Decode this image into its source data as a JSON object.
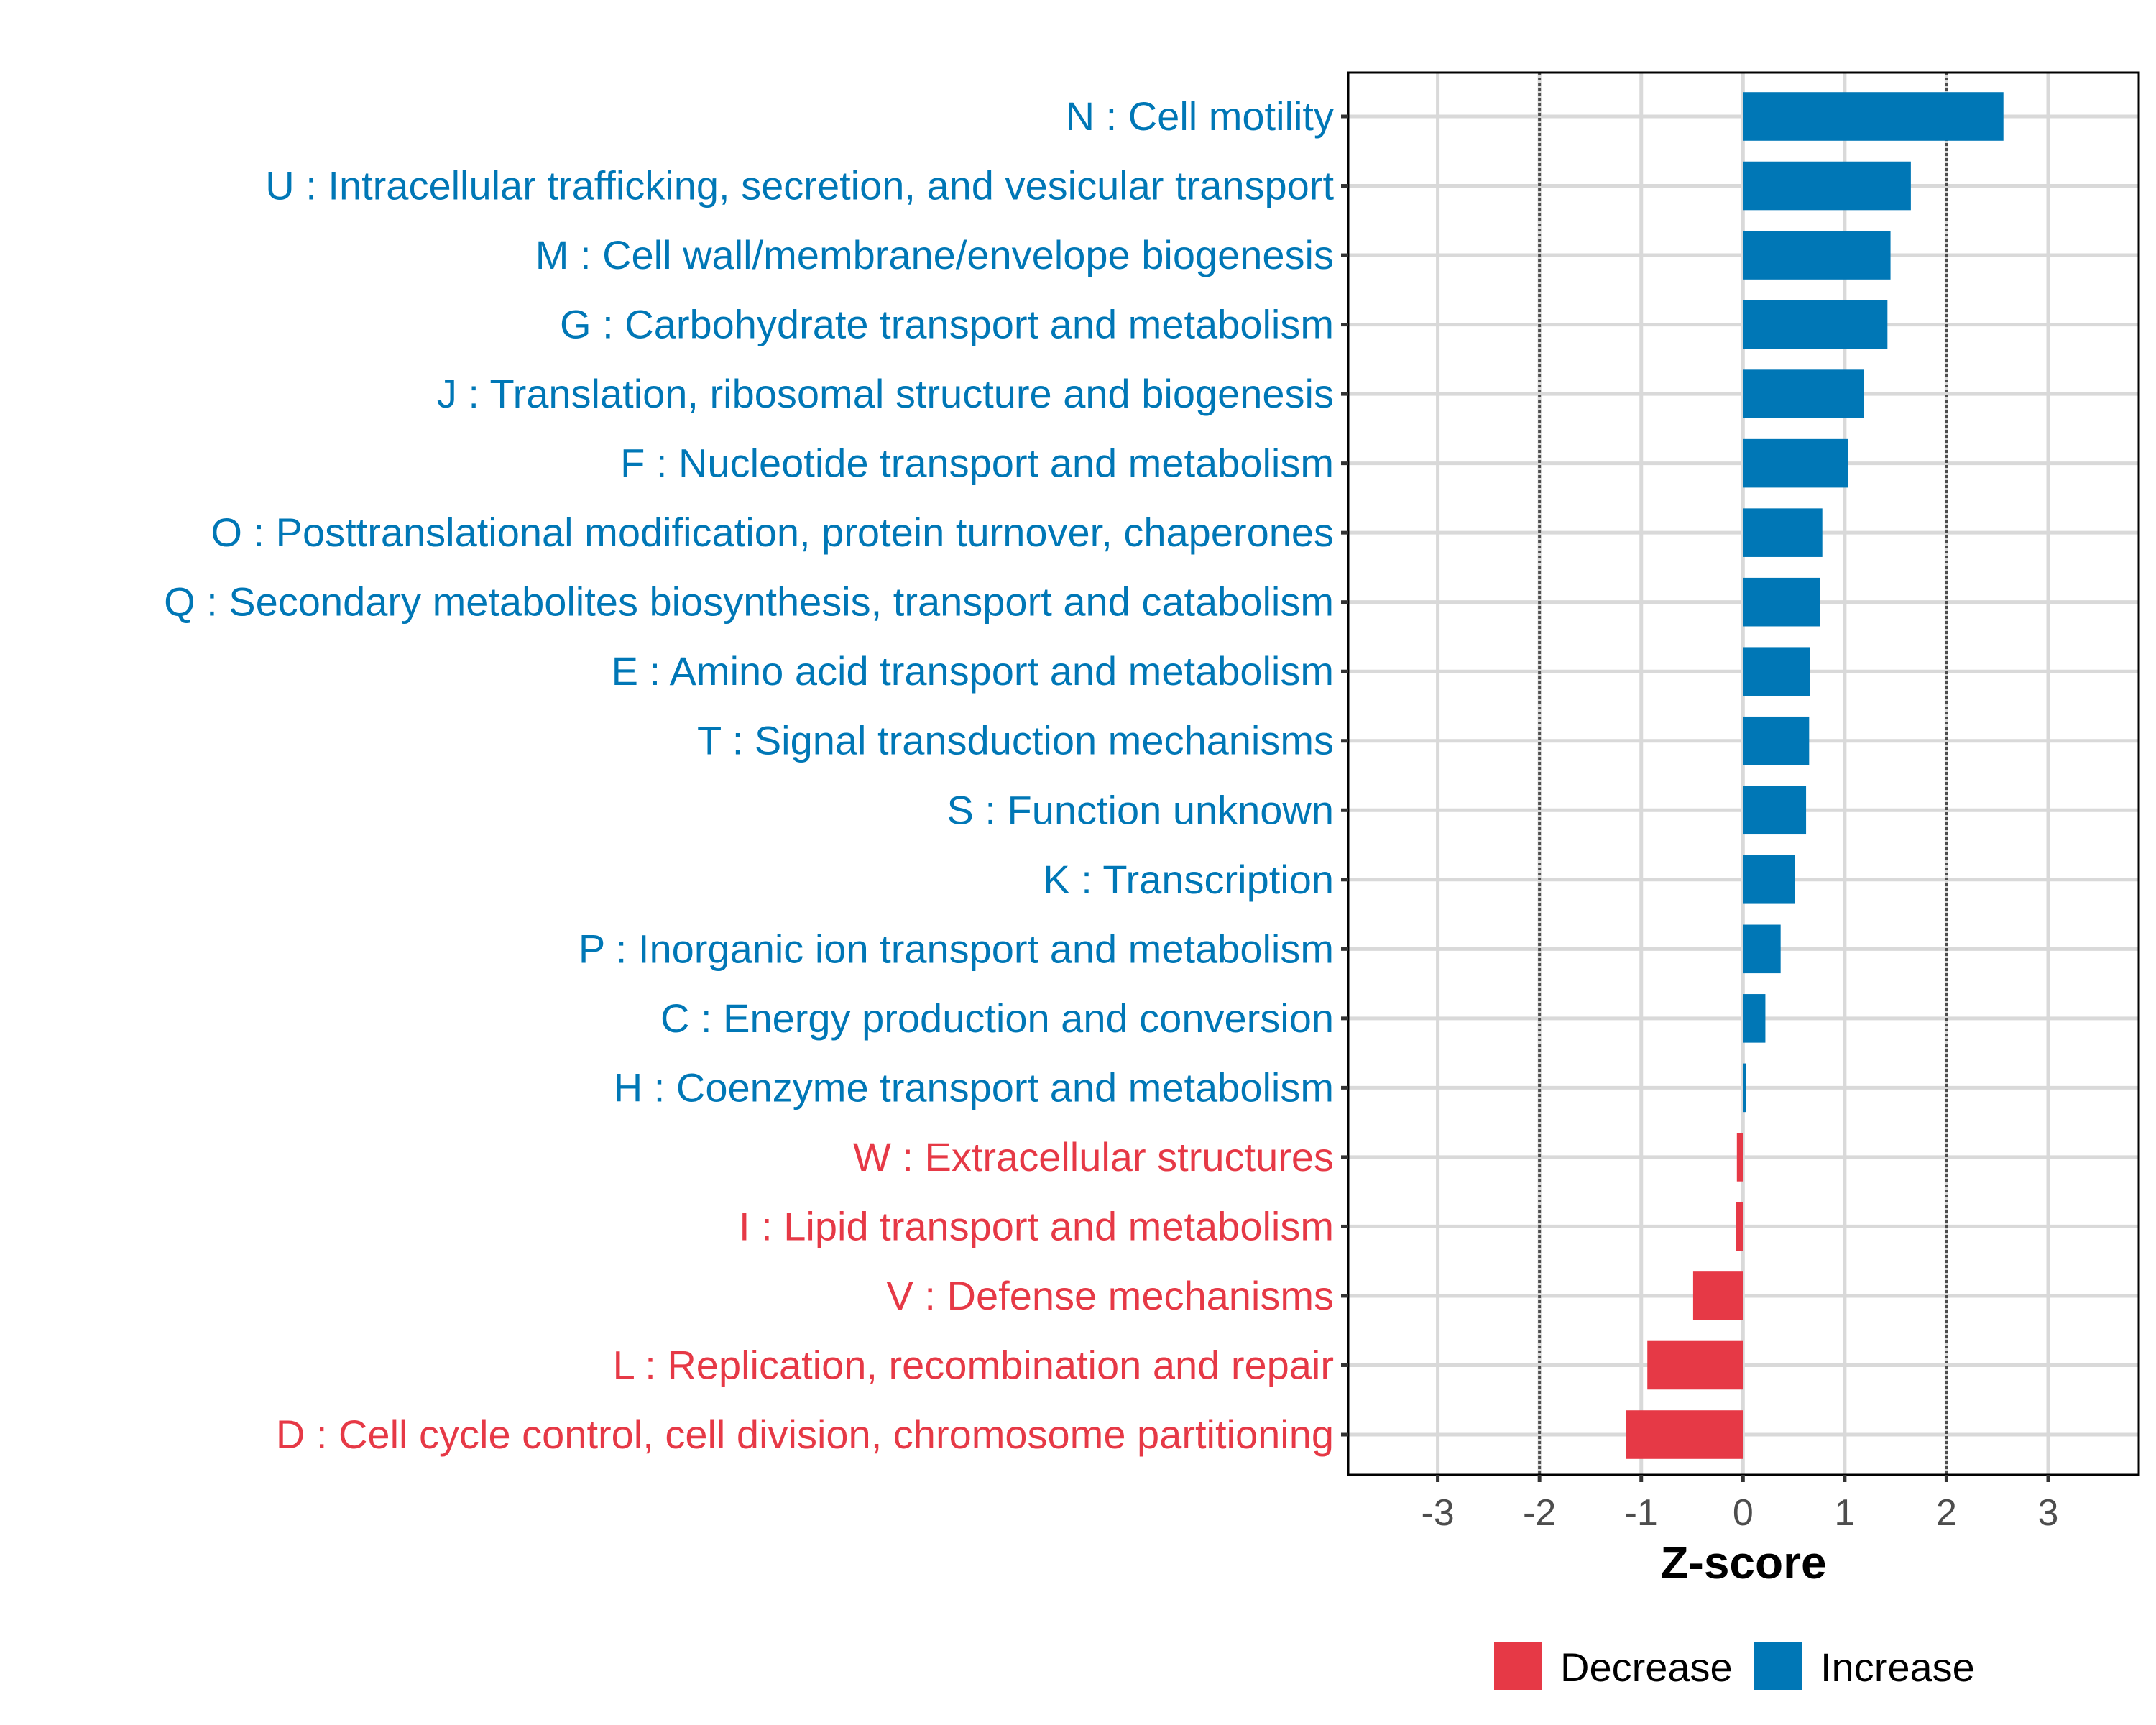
{
  "chart_data": {
    "type": "bar",
    "orientation": "horizontal",
    "title": "",
    "xlabel": "Z-score",
    "ylabel": "",
    "xlim": [
      -3.88,
      3.89
    ],
    "xticks": [
      -3,
      -2,
      -1,
      0,
      1,
      2,
      3
    ],
    "xtick_labels": [
      "-3",
      "-2",
      "-1",
      "0",
      "1",
      "2",
      "3"
    ],
    "grid": true,
    "reference_lines": [
      {
        "x": -2,
        "style": "dotted"
      },
      {
        "x": 2,
        "style": "dotted"
      }
    ],
    "categories": [
      "N : Cell motility",
      "U : Intracellular trafficking, secretion, and vesicular transport",
      "M : Cell wall/membrane/envelope biogenesis",
      "G : Carbohydrate transport and metabolism",
      "J : Translation, ribosomal structure and biogenesis",
      "F : Nucleotide transport and metabolism",
      "O : Posttranslational modification, protein turnover, chaperones",
      "Q : Secondary metabolites biosynthesis, transport and catabolism",
      "E : Amino acid transport and metabolism",
      "T : Signal transduction mechanisms",
      "S : Function unknown",
      "K : Transcription",
      "P : Inorganic ion transport and metabolism",
      "C : Energy production and conversion",
      "H : Coenzyme transport and metabolism",
      "W : Extracellular structures",
      "I : Lipid transport and metabolism",
      "V : Defense mechanisms",
      "L : Replication, recombination and repair",
      "D : Cell cycle control, cell division, chromosome partitioning"
    ],
    "values": [
      2.56,
      1.65,
      1.45,
      1.42,
      1.19,
      1.03,
      0.78,
      0.76,
      0.66,
      0.65,
      0.62,
      0.51,
      0.37,
      0.22,
      0.03,
      -0.06,
      -0.07,
      -0.49,
      -0.94,
      -1.15
    ],
    "groups": [
      "Increase",
      "Increase",
      "Increase",
      "Increase",
      "Increase",
      "Increase",
      "Increase",
      "Increase",
      "Increase",
      "Increase",
      "Increase",
      "Increase",
      "Increase",
      "Increase",
      "Increase",
      "Decrease",
      "Decrease",
      "Decrease",
      "Decrease",
      "Decrease"
    ],
    "legend": {
      "position": "bottom",
      "entries": [
        {
          "label": "Decrease",
          "color": "#E63946"
        },
        {
          "label": "Increase",
          "color": "#0077B6"
        }
      ]
    },
    "colors": {
      "Increase": "#0077B6",
      "Decrease": "#E63946"
    }
  }
}
